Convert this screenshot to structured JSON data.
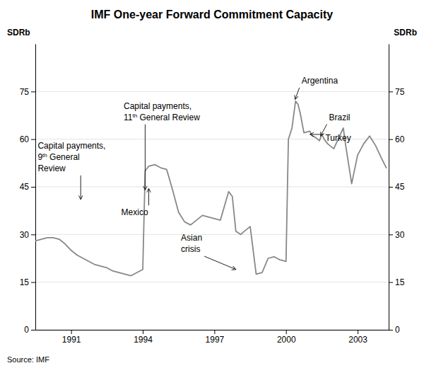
{
  "chart_data": {
    "type": "line",
    "title": "IMF One-year Forward Commitment Capacity",
    "ylabel": "SDRb",
    "y2label": "SDRb",
    "source": "Source: IMF",
    "color": "#888888",
    "grid": true,
    "xlim": [
      1989.5,
      2004.3
    ],
    "xticks": [
      1991,
      1994,
      1997,
      2000,
      2003
    ],
    "ylim": [
      0,
      90
    ],
    "yticks": [
      0,
      15,
      30,
      45,
      60,
      75
    ],
    "y2lim": [
      0,
      90
    ],
    "y2ticks": [
      0,
      15,
      30,
      45,
      60,
      75
    ],
    "x": [
      1989.5,
      1989.75,
      1990.0,
      1990.25,
      1990.5,
      1990.75,
      1991.0,
      1991.25,
      1991.5,
      1991.75,
      1992.0,
      1992.25,
      1992.5,
      1992.75,
      1993.0,
      1993.25,
      1993.5,
      1993.75,
      1994.0,
      1994.1,
      1994.25,
      1994.5,
      1994.75,
      1995.0,
      1995.25,
      1995.5,
      1995.75,
      1996.0,
      1996.25,
      1996.5,
      1996.75,
      1997.0,
      1997.25,
      1997.5,
      1997.6,
      1997.75,
      1997.9,
      1998.0,
      1998.1,
      1998.25,
      1998.5,
      1998.75,
      1999.0,
      1999.25,
      1999.5,
      1999.75,
      2000.0,
      2000.1,
      2000.25,
      2000.4,
      2000.5,
      2000.6,
      2000.75,
      2001.0,
      2001.1,
      2001.25,
      2001.4,
      2001.5,
      2001.6,
      2001.75,
      2002.0,
      2002.25,
      2002.4,
      2002.5,
      2002.75,
      2003.0,
      2003.25,
      2003.5,
      2003.75,
      2004.0,
      2004.2
    ],
    "values": [
      28.0,
      28.5,
      29.0,
      29.0,
      28.5,
      27.0,
      25.0,
      23.5,
      22.5,
      21.5,
      20.5,
      20.0,
      19.5,
      18.5,
      18.0,
      17.5,
      17.0,
      18.0,
      19.0,
      50.0,
      51.5,
      52.0,
      51.0,
      50.5,
      44.0,
      37.0,
      34.0,
      33.0,
      34.5,
      36.0,
      35.5,
      35.0,
      34.5,
      41.0,
      43.5,
      42.0,
      31.0,
      30.5,
      30.0,
      31.0,
      32.5,
      17.5,
      18.0,
      22.5,
      23.0,
      22.0,
      21.5,
      60.0,
      63.5,
      72.0,
      71.0,
      68.0,
      62.0,
      62.5,
      61.0,
      60.5,
      59.5,
      61.5,
      60.0,
      58.5,
      57.0,
      61.0,
      63.5,
      58.0,
      46.0,
      55.0,
      58.5,
      61.0,
      58.0,
      54.0,
      51.0
    ],
    "annotations": [
      {
        "text": [
          "Capital payments,",
          "9th General",
          "Review"
        ],
        "x": 1991.4,
        "y": 41.0,
        "text_x": 1989.6,
        "text_y": 59.5
      },
      {
        "text": [
          "Capital payments,",
          "11th General Review"
        ],
        "x": 1994.1,
        "y": 44.0,
        "text_x": 1993.2,
        "text_y": 72.0
      },
      {
        "text": [
          "Mexico"
        ],
        "x": 1994.25,
        "y": 44.5,
        "text_x": 1993.1,
        "text_y": 38.5
      },
      {
        "text": [
          "Asian",
          "crisis"
        ],
        "x": 1997.9,
        "y": 19.0,
        "text_x": 1995.6,
        "text_y": 30.5
      },
      {
        "text": [
          "Argentina"
        ],
        "x": 2000.38,
        "y": 72.5,
        "text_x": 2000.65,
        "text_y": 80.0
      },
      {
        "text": [
          "Brazil"
        ],
        "x": 2001.45,
        "y": 61.0,
        "text_x": 2001.8,
        "text_y": 68.5
      },
      {
        "text": [
          "Turkey"
        ],
        "x": 2001.0,
        "y": 61.5,
        "text_x": 2001.65,
        "text_y": 62.0
      }
    ]
  }
}
